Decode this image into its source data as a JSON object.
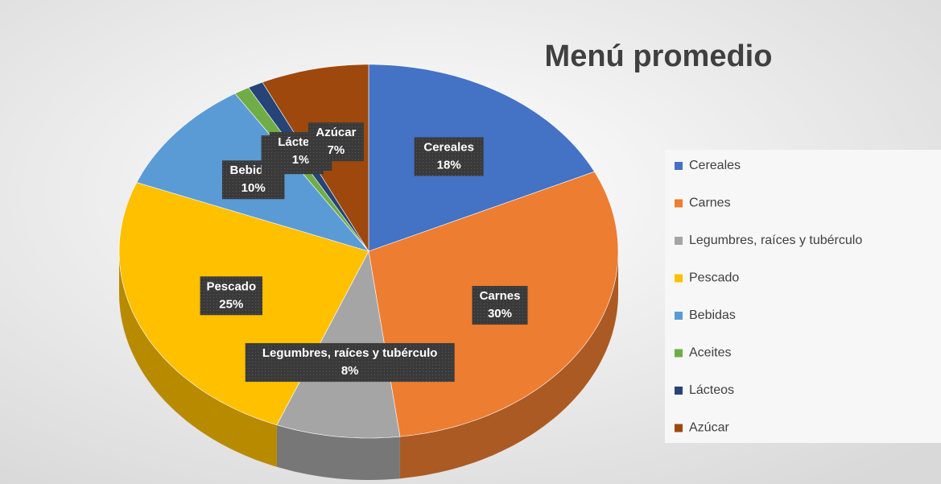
{
  "chart_data": {
    "type": "pie",
    "title": "Menú promedio",
    "categories": [
      "Cereales",
      "Carnes",
      "Legumbres, raíces y tubérculo",
      "Pescado",
      "Bebidas",
      "Aceites",
      "Lácteos",
      "Azúcar"
    ],
    "values": [
      18,
      30,
      8,
      25,
      10,
      1,
      1,
      7
    ],
    "value_labels": [
      "18%",
      "30%",
      "8%",
      "25%",
      "10%",
      "1%",
      "1%",
      "7%"
    ],
    "colors": [
      "#4472c4",
      "#ed7d31",
      "#a5a5a5",
      "#ffc000",
      "#5b9bd5",
      "#70ad47",
      "#264478",
      "#9e480e"
    ],
    "legend": "right"
  }
}
